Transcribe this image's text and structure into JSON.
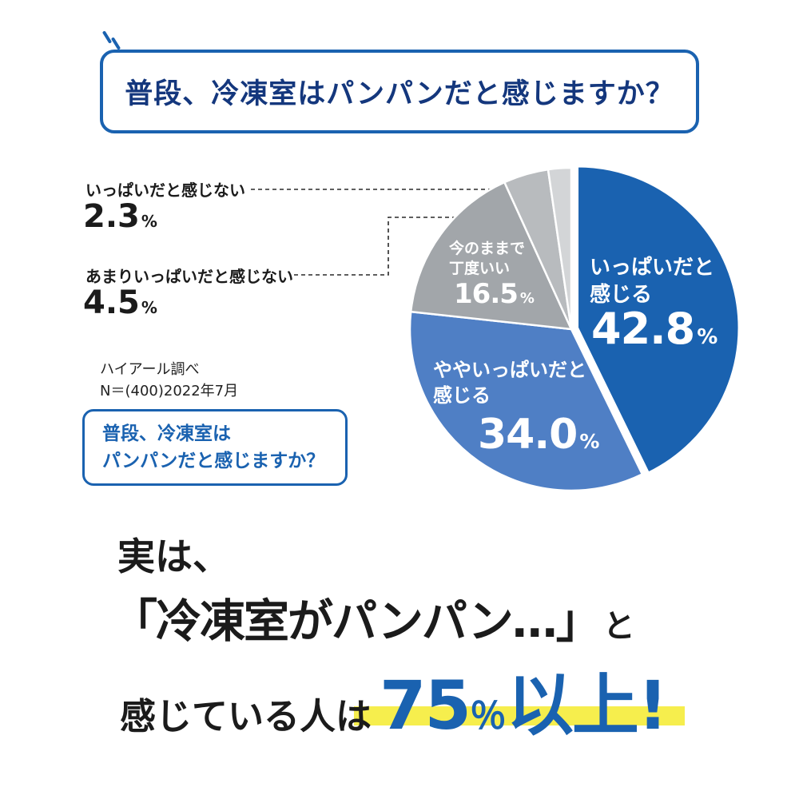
{
  "banner": {
    "title": "普段、冷凍室はパンパンだと感じますか？"
  },
  "chart_data": {
    "type": "pie",
    "title": "普段、冷凍室はパンパンだと感じますか？",
    "legend": "none",
    "radius": 202,
    "source": "ハイアール調べ N＝(400)2022年7月",
    "slices": [
      {
        "label": "いっぱいだと感じる",
        "value": 42.8,
        "display": "42.8",
        "unit": "%",
        "color": "#1a62b0",
        "explode": 8
      },
      {
        "label": "ややいっぱいだと感じる",
        "value": 34.0,
        "display": "34.0",
        "unit": "%",
        "color": "#4f7fc5",
        "explode": 0
      },
      {
        "label": "今のままで丁度いい",
        "value": 16.5,
        "display": "16.5",
        "unit": "%",
        "color": "#a2a6aa",
        "explode": 0
      },
      {
        "label": "あまりいっぱいだと感じない",
        "value": 4.5,
        "display": "4.5",
        "unit": "%",
        "color": "#b8bbbe",
        "explode": 0
      },
      {
        "label": "いっぱいだと感じない",
        "value": 2.3,
        "display": "2.3",
        "unit": "%",
        "color": "#d3d5d7",
        "explode": 0
      }
    ]
  },
  "pie_labels": {
    "full": {
      "line1": "いっぱいだと",
      "line2": "感じる",
      "display": "42.8",
      "unit": "%"
    },
    "somewhat": {
      "line1": "ややいっぱいだと",
      "line2": "感じる",
      "display": "34.0",
      "unit": "%"
    },
    "just": {
      "line1": "今のままで",
      "line2": "丁度いい",
      "display": "16.5",
      "unit": "%"
    }
  },
  "callouts": {
    "not_full": {
      "label": "いっぱいだと感じない",
      "display": "2.3",
      "unit": "%"
    },
    "not_really_full": {
      "label": "あまりいっぱいだと感じない",
      "display": "4.5",
      "unit": "%"
    }
  },
  "source": {
    "line1": "ハイアール調べ",
    "line2": "N＝(400)2022年7月"
  },
  "question_box": {
    "line1": "普段、冷凍室は",
    "line2": "パンパンだと感じますか？"
  },
  "bottom": {
    "intro": "実は、",
    "quote": "「冷凍室がパンパン…」",
    "quote_suffix": "と",
    "stat_lead": "感じている人は",
    "stat_number": "75",
    "stat_percent": "％",
    "stat_suffix": "以上!"
  },
  "colors": {
    "accent_blue": "#1a62b0",
    "navy_text": "#14377d",
    "highlight_yellow": "#f6ee4d"
  }
}
